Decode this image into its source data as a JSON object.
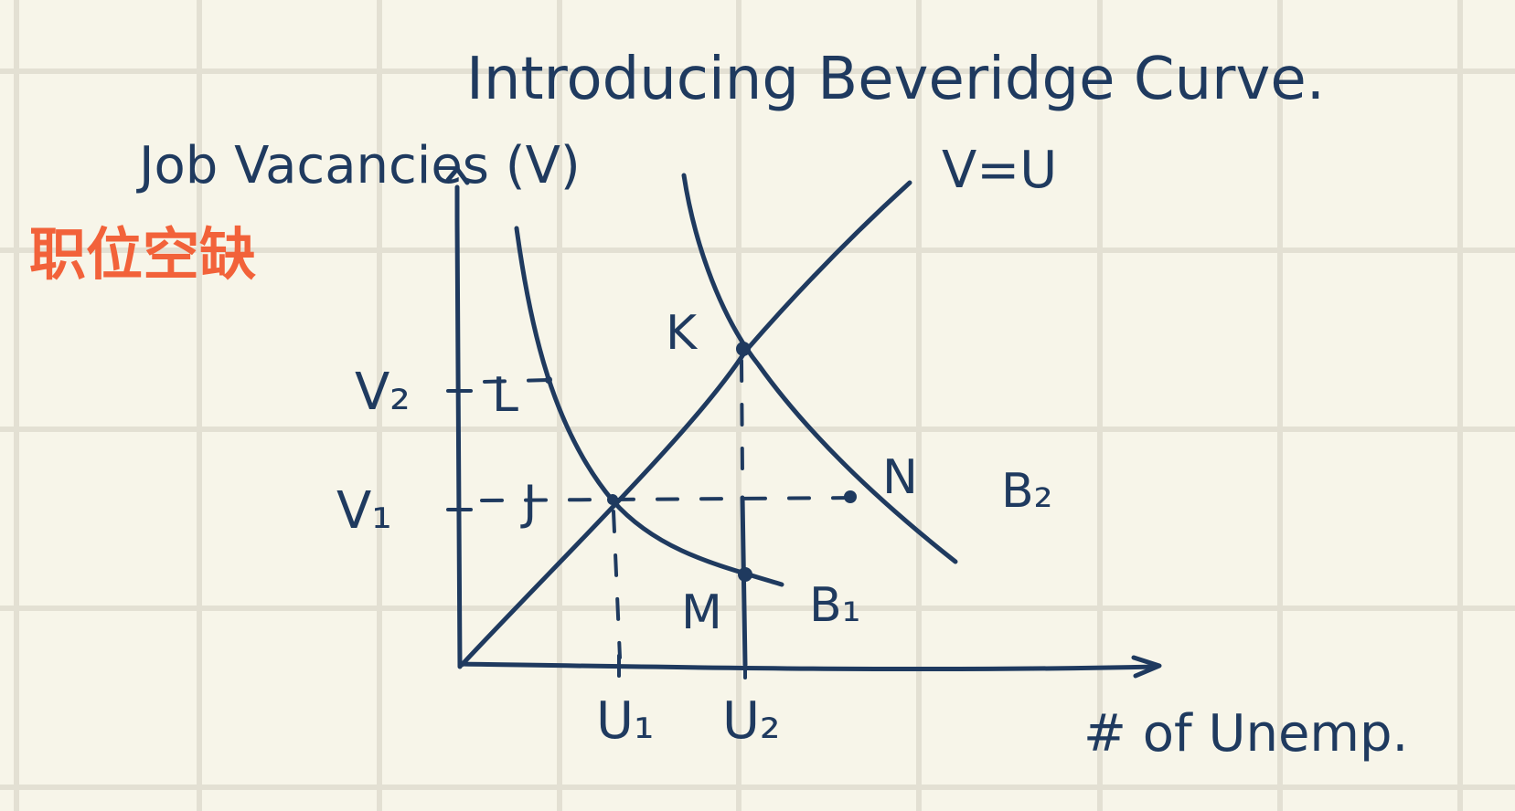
{
  "title": "Introducing Beveridge Curve.",
  "y_axis_label": "Job Vacancies (V)",
  "y_axis_label_cn": "职位空缺",
  "x_axis_label": "# of Unemp.",
  "line_label": "V=U",
  "curves": [
    "B₁",
    "B₂"
  ],
  "points": [
    "K",
    "L",
    "J",
    "M",
    "N"
  ],
  "y_ticks": [
    "V₂",
    "V₁"
  ],
  "x_ticks": [
    "U₁",
    "U₂"
  ],
  "colors": {
    "ink": "#1f3a5f",
    "accent": "#f2623a",
    "paper": "#f7f5e9",
    "grid": "#e3e0d3"
  }
}
